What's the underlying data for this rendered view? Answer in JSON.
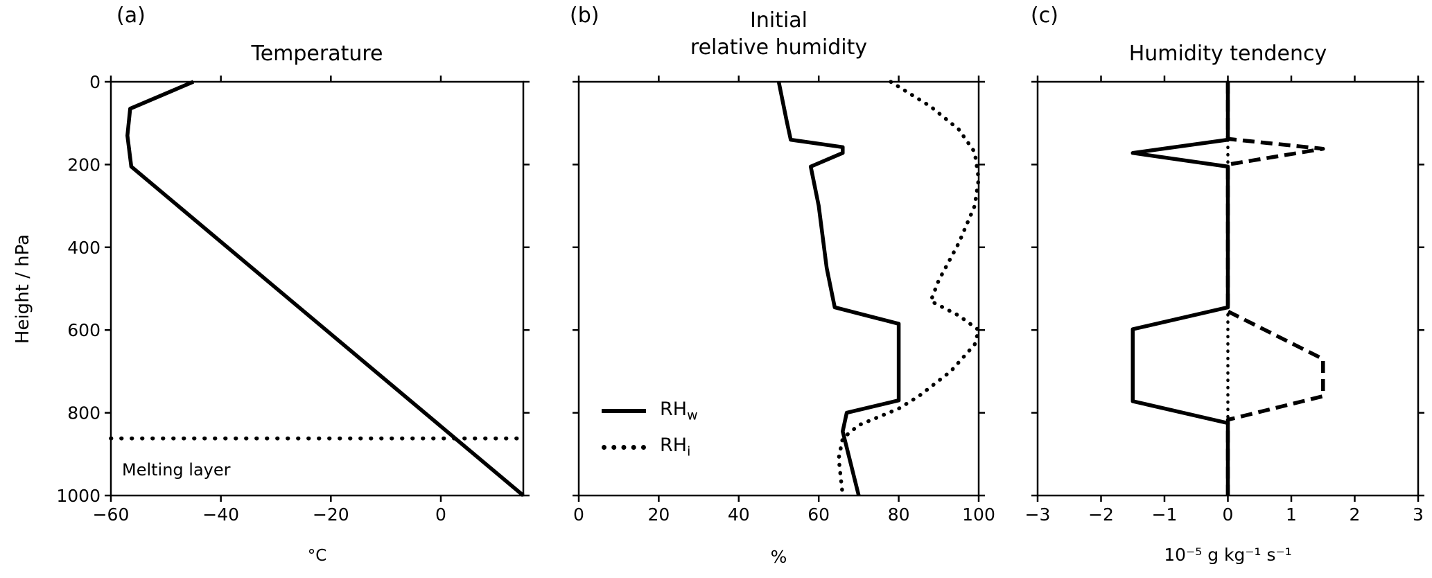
{
  "figure": {
    "background": "#ffffff",
    "ink": "#000000"
  },
  "chart_data": {
    "type": "line",
    "description": "Three-panel atmospheric profile figure; y axis is pressure height in hPa, 0 at top, 1000 at bottom",
    "panels": [
      {
        "label": "(a)",
        "title": "Temperature",
        "xlabel": "°C",
        "ylabel": "Height / hPa",
        "xlim": [
          -60,
          15
        ],
        "ylim": [
          1000,
          0
        ],
        "xticks": [
          -60,
          -40,
          -20,
          0
        ],
        "xtick_labels": [
          "−60",
          "−40",
          "−20",
          "0"
        ],
        "yticks": [
          0,
          200,
          400,
          600,
          800,
          1000
        ],
        "ytick_labels": [
          "0",
          "200",
          "400",
          "600",
          "800",
          "1000"
        ],
        "show_ytick_labels": true,
        "series": [
          {
            "name": "temperature-profile",
            "style": "solid",
            "points": [
              [
                -45,
                0
              ],
              [
                -56.5,
                65
              ],
              [
                -57,
                130
              ],
              [
                -56.3,
                205
              ],
              [
                15,
                1000
              ]
            ]
          },
          {
            "name": "melting-layer-line",
            "style": "dotted-large",
            "points": [
              [
                -60,
                862
              ],
              [
                15,
                862
              ]
            ]
          }
        ],
        "annotations": [
          {
            "text": "Melting layer"
          }
        ]
      },
      {
        "label": "(b)",
        "title": "Initial\nrelative humidity",
        "xlabel": "%",
        "ylabel": "",
        "xlim": [
          0,
          100
        ],
        "ylim": [
          1000,
          0
        ],
        "xticks": [
          0,
          20,
          40,
          60,
          80,
          100
        ],
        "xtick_labels": [
          "0",
          "20",
          "40",
          "60",
          "80",
          "100"
        ],
        "yticks": [
          0,
          200,
          400,
          600,
          800,
          1000
        ],
        "ytick_labels": [],
        "show_ytick_labels": false,
        "series": [
          {
            "name": "relative-humidity-water",
            "style": "solid",
            "points": [
              [
                50,
                0
              ],
              [
                52,
                95
              ],
              [
                53,
                140
              ],
              [
                66,
                158
              ],
              [
                66,
                172
              ],
              [
                58,
                205
              ],
              [
                60,
                300
              ],
              [
                62,
                450
              ],
              [
                64,
                545
              ],
              [
                80,
                585
              ],
              [
                80,
                770
              ],
              [
                67,
                800
              ],
              [
                66,
                845
              ],
              [
                70,
                1000
              ]
            ]
          },
          {
            "name": "relative-humidity-ice",
            "style": "dotted",
            "points": [
              [
                78,
                0
              ],
              [
                88,
                60
              ],
              [
                95,
                115
              ],
              [
                99,
                170
              ],
              [
                100,
                235
              ],
              [
                99,
                300
              ],
              [
                95,
                390
              ],
              [
                90,
                480
              ],
              [
                88,
                530
              ],
              [
                95,
                565
              ],
              [
                100,
                600
              ],
              [
                99,
                635
              ],
              [
                93,
                700
              ],
              [
                85,
                760
              ],
              [
                80,
                790
              ],
              [
                70,
                830
              ],
              [
                66,
                862
              ],
              [
                65,
                910
              ],
              [
                66,
                1000
              ]
            ]
          }
        ],
        "legend": {
          "items": [
            {
              "style": "solid",
              "label_main": "RH",
              "label_sub": "w"
            },
            {
              "style": "dotted",
              "label_main": "RH",
              "label_sub": "i"
            }
          ]
        }
      },
      {
        "label": "(c)",
        "title": "Humidity tendency",
        "xlabel": "10⁻⁵ g kg⁻¹ s⁻¹",
        "ylabel": "",
        "xlim": [
          -3,
          3
        ],
        "ylim": [
          1000,
          0
        ],
        "xticks": [
          -3,
          -2,
          -1,
          0,
          1,
          2,
          3
        ],
        "xtick_labels": [
          "−3",
          "−2",
          "−1",
          "0",
          "1",
          "2",
          "3"
        ],
        "yticks": [
          0,
          200,
          400,
          600,
          800,
          1000
        ],
        "ytick_labels": [],
        "show_ytick_labels": false,
        "series": [
          {
            "name": "zero-reference-line",
            "style": "dotted-small",
            "points": [
              [
                0,
                0
              ],
              [
                0,
                1000
              ]
            ]
          },
          {
            "name": "moistening-tendency",
            "style": "dashed",
            "points": [
              [
                0,
                0
              ],
              [
                0,
                138
              ],
              [
                1.5,
                162
              ],
              [
                0,
                200
              ],
              [
                0,
                555
              ],
              [
                1.5,
                670
              ],
              [
                1.5,
                760
              ],
              [
                0,
                817
              ],
              [
                0,
                1000
              ]
            ]
          },
          {
            "name": "drying-tendency",
            "style": "solid",
            "points": [
              [
                0,
                0
              ],
              [
                0,
                140
              ],
              [
                -1.5,
                172
              ],
              [
                0,
                205
              ],
              [
                0,
                545
              ],
              [
                -1.5,
                598
              ],
              [
                -1.5,
                772
              ],
              [
                0,
                825
              ],
              [
                0,
                1000
              ]
            ]
          }
        ]
      }
    ]
  }
}
